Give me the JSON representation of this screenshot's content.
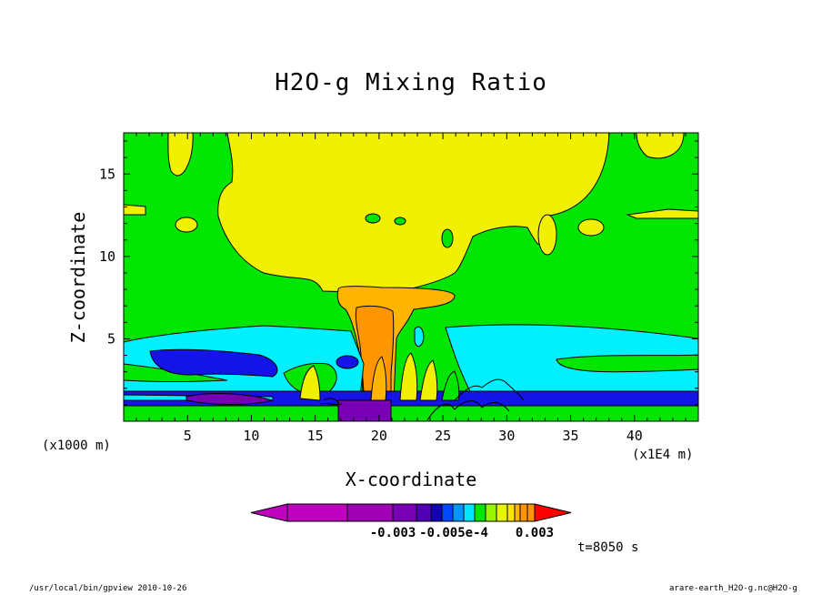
{
  "chart_data": {
    "type": "heatmap",
    "title": "H2O-g Mixing Ratio",
    "xlabel": "X-coordinate",
    "ylabel": "Z-coordinate",
    "x_units": "(x1000 m)",
    "y_units": "(x1E4 m)",
    "xlim": [
      0,
      45
    ],
    "ylim": [
      0,
      17.5
    ],
    "x_ticks": [
      "5",
      "10",
      "15",
      "20",
      "25",
      "30",
      "35",
      "40"
    ],
    "x_tick_values": [
      5,
      10,
      15,
      20,
      25,
      30,
      35,
      40
    ],
    "y_ticks": [
      "5",
      "10",
      "15"
    ],
    "y_tick_values": [
      5,
      10,
      15
    ],
    "colorbar_labels": [
      "-0.003",
      "-0.005e-4",
      "0.003"
    ],
    "colorbar_colors": [
      "#bf00bf",
      "#a000b4",
      "#7800b4",
      "#5000b4",
      "#1400b4",
      "#0048ff",
      "#0096ff",
      "#00e6ff",
      "#00e600",
      "#9af500",
      "#e6f500",
      "#ffe600",
      "#ffb400",
      "#ff9600",
      "#ff0000"
    ],
    "annotation": "t=8050 s",
    "colors": {
      "background_field": "#00e600",
      "humid": "#f0f000",
      "very_humid": "#ffb400",
      "dry_layer": "#00f0ff",
      "drier": "#1414e6",
      "driest": "#7800b4"
    }
  },
  "footer": {
    "left": "/usr/local/bin/gpview  2010-10-26",
    "right": "arare-earth_H2O-g.nc@H2O-g"
  }
}
